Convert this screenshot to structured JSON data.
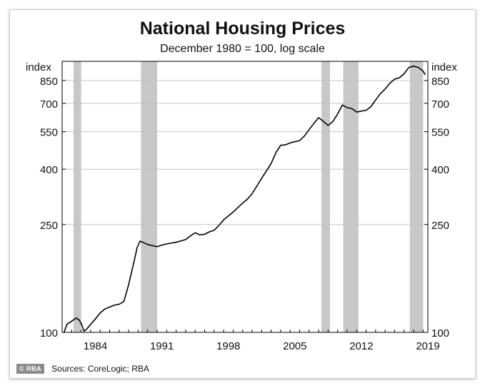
{
  "chart_data": {
    "type": "line",
    "title": "National Housing Prices",
    "subtitle": "December 1980 = 100, log scale",
    "ylabel_left": "index",
    "ylabel_right": "index",
    "y_scale": "log",
    "ylim": [
      100,
      1000
    ],
    "xlim": [
      1981.0,
      2019.5
    ],
    "y_ticks": [
      100,
      250,
      400,
      550,
      700,
      850
    ],
    "x_ticks": [
      "1984",
      "1991",
      "1998",
      "2005",
      "2012",
      "2019"
    ],
    "grid": "horizontal",
    "shaded_periods": [
      [
        1982.2,
        1983.0
      ],
      [
        1989.3,
        1991.0
      ],
      [
        2008.3,
        2009.2
      ],
      [
        2010.6,
        2012.2
      ],
      [
        2017.6,
        2019.0
      ]
    ],
    "series": [
      {
        "x": [
          1981.2,
          1981.5,
          1982.0,
          1982.5,
          1982.8,
          1983.0,
          1983.3,
          1983.6,
          1984.0,
          1984.5,
          1985.0,
          1985.5,
          1986.0,
          1986.5,
          1987.0,
          1987.5,
          1988.0,
          1988.5,
          1988.9,
          1989.2,
          1989.5,
          1990.0,
          1990.5,
          1991.0,
          1991.5,
          1992.0,
          1993.0,
          1994.0,
          1994.5,
          1995.0,
          1995.5,
          1996.0,
          1996.5,
          1997.0,
          1997.5,
          1998.0,
          1999.0,
          2000.0,
          2000.5,
          2001.0,
          2002.0,
          2003.0,
          2003.5,
          2004.0,
          2004.5,
          2005.0,
          2005.5,
          2006.0,
          2006.5,
          2007.0,
          2007.5,
          2008.0,
          2008.5,
          2009.0,
          2009.5,
          2010.0,
          2010.5,
          2011.0,
          2011.5,
          2012.0,
          2012.5,
          2013.0,
          2013.5,
          2014.0,
          2014.5,
          2015.0,
          2015.5,
          2016.0,
          2016.5,
          2017.0,
          2017.5,
          2018.0,
          2018.5,
          2019.0,
          2019.2
        ],
        "y": [
          100,
          107,
          110,
          113,
          111,
          108,
          101,
          103,
          107,
          112,
          118,
          122,
          124,
          126,
          127,
          130,
          150,
          178,
          206,
          217,
          215,
          211,
          209,
          207,
          210,
          212,
          215,
          220,
          227,
          233,
          229,
          230,
          235,
          238,
          248,
          260,
          278,
          300,
          310,
          325,
          370,
          420,
          460,
          490,
          492,
          500,
          505,
          510,
          530,
          560,
          590,
          620,
          600,
          580,
          600,
          640,
          690,
          675,
          670,
          650,
          655,
          660,
          680,
          720,
          760,
          790,
          830,
          860,
          870,
          900,
          950,
          960,
          950,
          920,
          895
        ]
      }
    ]
  },
  "footer": {
    "logo": "© RBA",
    "sources": "Sources:   CoreLogic; RBA"
  }
}
